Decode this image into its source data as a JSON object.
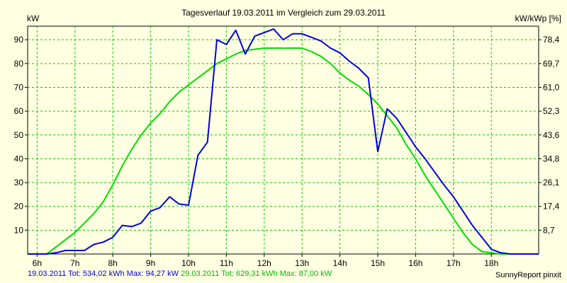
{
  "chart_data": {
    "type": "line",
    "title": "Tagesverlauf 19.03.2011 im Vergleich zum 29.03.2011",
    "ylabel_left": "kW",
    "ylabel_right": "kW/kWp [%]",
    "x_ticks": [
      "6h",
      "7h",
      "8h",
      "9h",
      "10h",
      "11h",
      "12h",
      "13h",
      "14h",
      "15h",
      "16h",
      "17h",
      "18h"
    ],
    "y_ticks_left": [
      "10",
      "20",
      "30",
      "40",
      "50",
      "60",
      "70",
      "80",
      "90"
    ],
    "y_ticks_right": [
      "8,7",
      "17,4",
      "26,1",
      "34,8",
      "43,6",
      "52,3",
      "61,0",
      "69,7",
      "78,4"
    ],
    "xlim": [
      5.75,
      19.25
    ],
    "ylim": [
      0,
      95.7
    ],
    "grid": true,
    "series": [
      {
        "name": "19.03.2011",
        "color": "#0000dd",
        "x": [
          5.75,
          6.25,
          6.5,
          6.75,
          7.0,
          7.25,
          7.5,
          7.75,
          8.0,
          8.25,
          8.5,
          8.75,
          9.0,
          9.25,
          9.5,
          9.75,
          10.0,
          10.25,
          10.5,
          10.75,
          11.0,
          11.25,
          11.5,
          11.75,
          12.0,
          12.25,
          12.5,
          12.75,
          13.0,
          13.25,
          13.5,
          13.75,
          14.0,
          14.25,
          14.5,
          14.75,
          15.0,
          15.25,
          15.5,
          15.75,
          16.0,
          16.25,
          16.5,
          16.75,
          17.0,
          17.25,
          17.5,
          17.75,
          18.0,
          18.25,
          18.5,
          19.25
        ],
        "y": [
          0,
          0,
          0.5,
          1.5,
          1.5,
          1.5,
          4,
          5,
          7,
          12,
          11.5,
          13,
          18,
          19.5,
          24,
          21,
          20.5,
          41.5,
          47,
          90,
          88,
          94,
          84,
          91.5,
          93,
          94.5,
          90,
          92.5,
          92.5,
          91,
          89.5,
          86.5,
          84.5,
          81,
          78,
          74,
          43,
          61,
          57,
          51,
          45,
          40,
          34.5,
          29,
          24,
          18,
          12,
          7,
          2,
          0.5,
          0,
          0
        ]
      },
      {
        "name": "29.03.2011",
        "color": "#00dd00",
        "x": [
          5.75,
          6.25,
          6.5,
          6.75,
          7.0,
          7.25,
          7.5,
          7.75,
          8.0,
          8.25,
          8.5,
          8.75,
          9.0,
          9.25,
          9.5,
          9.75,
          10.0,
          10.25,
          10.5,
          10.75,
          11.0,
          11.25,
          11.5,
          11.75,
          12.0,
          12.25,
          12.5,
          12.75,
          13.0,
          13.25,
          13.5,
          13.75,
          14.0,
          14.25,
          14.5,
          14.75,
          15.0,
          15.25,
          15.5,
          15.75,
          16.0,
          16.25,
          16.5,
          16.75,
          17.0,
          17.25,
          17.5,
          17.75,
          18.0,
          18.25,
          18.5,
          19.25
        ],
        "y": [
          0,
          0,
          3,
          6,
          9,
          13,
          17,
          22,
          29,
          37,
          44,
          50,
          55,
          59,
          64,
          68,
          71,
          74,
          77,
          80,
          82,
          84,
          85.5,
          86,
          86.5,
          86.5,
          86.5,
          86.5,
          86.5,
          85,
          83,
          80,
          76,
          73,
          70.5,
          67,
          63,
          58,
          53,
          46,
          40,
          33,
          27,
          21,
          15,
          9,
          4,
          1,
          0.5,
          0,
          0,
          0
        ]
      }
    ]
  },
  "footer": {
    "s1_date": "19.03.2011",
    "s1_stats": "Tot: 534,02 kWh Max: 94,27 kW",
    "s2_date": "29.03.2011",
    "s2_stats": "Tot: 629,31 kWh Max: 87,00 kW"
  },
  "credit": "SunnyReport pinxit"
}
